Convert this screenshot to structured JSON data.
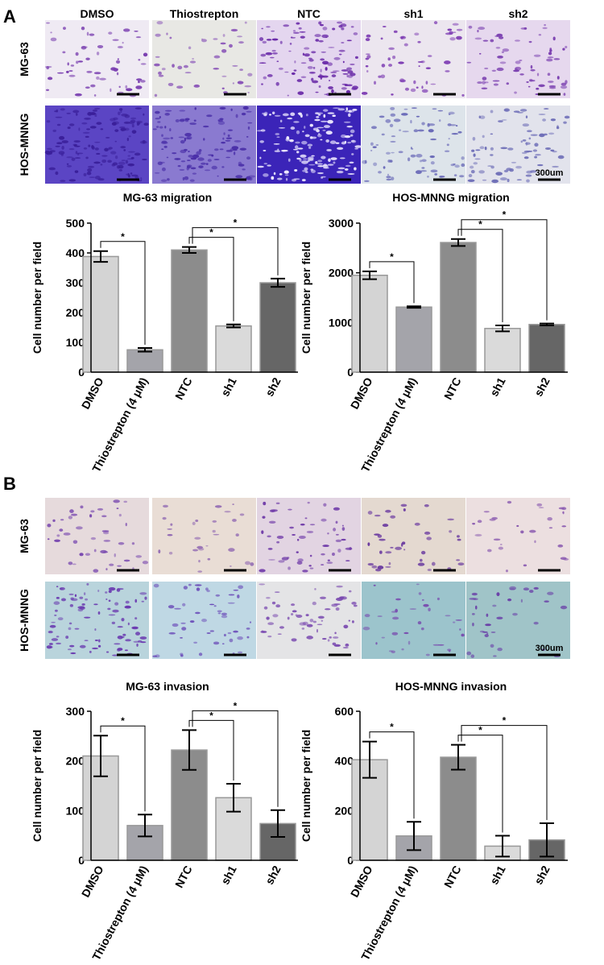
{
  "panels": [
    {
      "label": "A",
      "columns": [
        "DMSO",
        "Thiostrepton",
        "NTC",
        "sh1",
        "sh2"
      ],
      "rows": [
        "MG-63",
        "HOS-MNNG"
      ],
      "scale_bar": "300um"
    },
    {
      "label": "B",
      "columns": [
        "DMSO",
        "Thiostrepton",
        "NTC",
        "sh1",
        "sh2"
      ],
      "rows": [
        "MG-63",
        "HOS-MNNG"
      ],
      "scale_bar": "300um"
    }
  ],
  "chart_data": [
    {
      "type": "bar",
      "title": "MG-63 migration",
      "ylabel": "Cell number per field",
      "categories": [
        "DMSO",
        "Thiostrepton (4 μM)",
        "NTC",
        "sh1",
        "sh2"
      ],
      "values": [
        388,
        75,
        410,
        155,
        300
      ],
      "errors": [
        18,
        6,
        10,
        5,
        14
      ],
      "colors": [
        "#d4d4d4",
        "#a4a4aa",
        "#8c8c8c",
        "#dadada",
        "#666666"
      ],
      "ylim": [
        0,
        500
      ],
      "yticks": [
        0,
        100,
        200,
        300,
        400,
        500
      ],
      "significance": [
        {
          "label": "*",
          "pair": [
            "DMSO",
            "Thiostrepton (4 μM)"
          ]
        },
        {
          "label": "*",
          "pair": [
            "NTC",
            "sh1"
          ]
        },
        {
          "label": "*",
          "pair": [
            "NTC",
            "sh2"
          ]
        }
      ]
    },
    {
      "type": "bar",
      "title": "HOS-MNNG migration",
      "ylabel": "Cell number per field",
      "categories": [
        "DMSO",
        "Thiostrepton (4 μM)",
        "NTC",
        "sh1",
        "sh2"
      ],
      "values": [
        1950,
        1310,
        2610,
        880,
        960
      ],
      "errors": [
        80,
        15,
        70,
        60,
        20
      ],
      "colors": [
        "#d4d4d4",
        "#a4a4aa",
        "#8c8c8c",
        "#dadada",
        "#666666"
      ],
      "ylim": [
        0,
        3000
      ],
      "yticks": [
        0,
        1000,
        2000,
        3000
      ],
      "significance": [
        {
          "label": "*",
          "pair": [
            "DMSO",
            "Thiostrepton (4 μM)"
          ]
        },
        {
          "label": "*",
          "pair": [
            "NTC",
            "sh1"
          ]
        },
        {
          "label": "*",
          "pair": [
            "NTC",
            "sh2"
          ]
        }
      ]
    },
    {
      "type": "bar",
      "title": "MG-63 invasion",
      "ylabel": "Cell number per field",
      "categories": [
        "DMSO",
        "Thiostrepton (4 μM)",
        "NTC",
        "sh1",
        "sh2"
      ],
      "values": [
        210,
        70,
        222,
        126,
        74
      ],
      "errors": [
        41,
        22,
        40,
        28,
        27
      ],
      "colors": [
        "#d4d4d4",
        "#a4a4aa",
        "#8c8c8c",
        "#dadada",
        "#666666"
      ],
      "ylim": [
        0,
        300
      ],
      "yticks": [
        0,
        100,
        200,
        300
      ],
      "significance": [
        {
          "label": "*",
          "pair": [
            "DMSO",
            "Thiostrepton (4 μM)"
          ]
        },
        {
          "label": "*",
          "pair": [
            "NTC",
            "sh1"
          ]
        },
        {
          "label": "*",
          "pair": [
            "NTC",
            "sh2"
          ]
        }
      ]
    },
    {
      "type": "bar",
      "title": "HOS-MNNG invasion",
      "ylabel": "Cell number per field",
      "categories": [
        "DMSO",
        "Thiostrepton (4 μM)",
        "NTC",
        "sh1",
        "sh2"
      ],
      "values": [
        405,
        98,
        415,
        57,
        82
      ],
      "errors": [
        73,
        57,
        50,
        42,
        67
      ],
      "colors": [
        "#d4d4d4",
        "#a4a4aa",
        "#8c8c8c",
        "#dadada",
        "#666666"
      ],
      "ylim": [
        0,
        600
      ],
      "yticks": [
        0,
        200,
        400,
        600
      ],
      "significance": [
        {
          "label": "*",
          "pair": [
            "DMSO",
            "Thiostrepton (4 μM)"
          ]
        },
        {
          "label": "*",
          "pair": [
            "NTC",
            "sh1"
          ]
        },
        {
          "label": "*",
          "pair": [
            "NTC",
            "sh2"
          ]
        }
      ]
    }
  ]
}
